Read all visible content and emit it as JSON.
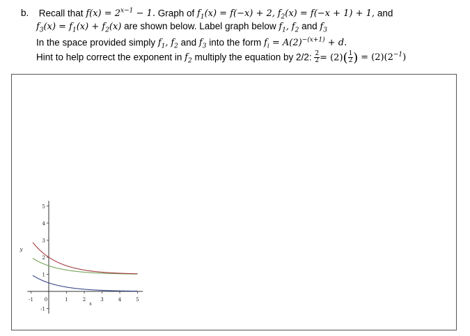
{
  "problem": {
    "label": "b.",
    "line1_lead": "Recall that",
    "line1_fdef": "f(x) = 2",
    "line1_fexp": "x−1",
    "line1_fend": " − 1.",
    "line1_mid": "Graph of",
    "line1_f1": "f",
    "line1_f1sub": "1",
    "line1_f1def": "(x) = f(−x) + 2,",
    "line1_f2": "f",
    "line1_f2sub": "2",
    "line1_f2def": "(x) = f(−x + 1) + 1,",
    "line1_and": "and",
    "line2_f3": "f",
    "line2_f3sub": "3",
    "line2_f3def": "(x) = f",
    "line2_a": "1",
    "line2_b": "(x) + f",
    "line2_c": "2",
    "line2_d": "(x)",
    "line2_text": "are shown below. Label graph below",
    "line2_l1": "f",
    "line2_l1sub": "1",
    "line2_l2": "f",
    "line2_l2sub": "2",
    "line2_and": "and",
    "line2_l3": "f",
    "line2_l3sub": "3",
    "line3_text": "In the space provided simply",
    "line3_g1": "f",
    "line3_g1sub": "1",
    "line3_g2": "f",
    "line3_g2sub": "2",
    "line3_and": "and",
    "line3_g3": "f",
    "line3_g3sub": "3",
    "line3_into": "into the form",
    "line3_fi": "f",
    "line3_fisub": "i",
    "line3_form": " = A(2)",
    "line3_exp": "−(x+1)",
    "line3_end": " + d.",
    "line4_text": "Hint to help correct the exponent in",
    "line4_f": "f",
    "line4_fsub": "2",
    "line4_text2": "multiply the equation by 2/2:",
    "line4_frac_num": "2",
    "line4_frac_den": "2",
    "line4_eq1": "= (2)",
    "line4_frac2_num": "1",
    "line4_frac2_den": "2",
    "line4_eq2": "= (2)(2",
    "line4_exp": "−1",
    "line4_end": ")"
  },
  "chart_data": {
    "type": "line",
    "xlabel": "x",
    "ylabel": "y",
    "x_ticks": [
      -1,
      0,
      1,
      2,
      3,
      4,
      5
    ],
    "y_ticks": [
      -1,
      0,
      1,
      2,
      3,
      4,
      5
    ],
    "xlim": [
      -1.2,
      5.3
    ],
    "ylim": [
      -1.3,
      5.3
    ],
    "series": [
      {
        "color": "#77a35a",
        "formula": "2^(-x-1)+1",
        "x_start": -0.9,
        "x_end": 5
      },
      {
        "color": "#a33d42",
        "formula": "2^(-x)+1",
        "x_start": -0.9,
        "x_end": 5
      },
      {
        "color": "#3a4a8c",
        "formula": "2^(-x-1)",
        "x_start": -0.9,
        "x_end": 5
      }
    ]
  }
}
